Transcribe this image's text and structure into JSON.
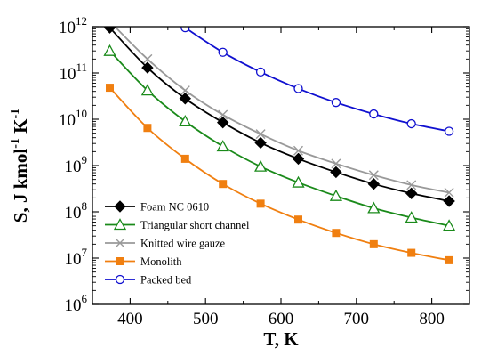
{
  "chart_data": {
    "type": "line",
    "xlabel": "T, K",
    "ylabel": {
      "main": "S, J kmol",
      "sup1": "-1",
      "mid": " K",
      "sup2": "-1"
    },
    "x_ticks": [
      400,
      500,
      600,
      700,
      800
    ],
    "y_ticks": [
      {
        "value": 1000000.0,
        "base": "10",
        "exp": "6"
      },
      {
        "value": 10000000.0,
        "base": "10",
        "exp": "7"
      },
      {
        "value": 100000000.0,
        "base": "10",
        "exp": "8"
      },
      {
        "value": 1000000000.0,
        "base": "10",
        "exp": "9"
      },
      {
        "value": 10000000000.0,
        "base": "10",
        "exp": "10"
      },
      {
        "value": 100000000000.0,
        "base": "10",
        "exp": "11"
      },
      {
        "value": 1000000000000.0,
        "base": "10",
        "exp": "12"
      }
    ],
    "xlim": [
      350,
      850
    ],
    "ylim": [
      1000000.0,
      1000000000000.0
    ],
    "y_scale": "log",
    "grid": false,
    "legend_position": "bottom-left",
    "series": [
      {
        "name": "Foam NC 0610",
        "color": "#000000",
        "marker": "filled-diamond",
        "x": [
          373,
          423,
          473,
          523,
          573,
          623,
          673,
          723,
          773,
          823
        ],
        "y": [
          950000000000.0,
          130000000000.0,
          28000000000.0,
          8500000000.0,
          3100000000.0,
          1400000000.0,
          720000000.0,
          400000000.0,
          250000000.0,
          170000000.0
        ]
      },
      {
        "name": "Triangular short channel",
        "color": "#1a8a1a",
        "marker": "open-triangle",
        "x": [
          373,
          423,
          473,
          523,
          573,
          623,
          673,
          723,
          773,
          823
        ],
        "y": [
          300000000000.0,
          42000000000.0,
          9000000000.0,
          2600000000.0,
          950000000.0,
          430000000.0,
          220000000.0,
          120000000.0,
          75000000.0,
          50000000.0
        ]
      },
      {
        "name": "Knitted wire gauze",
        "color": "#999999",
        "marker": "x",
        "x": [
          373,
          423,
          473,
          523,
          573,
          623,
          673,
          723,
          773,
          823
        ],
        "y": [
          1300000000000.0,
          200000000000.0,
          42000000000.0,
          12500000000.0,
          4800000000.0,
          2100000000.0,
          1100000000.0,
          620000000.0,
          380000000.0,
          260000000.0
        ]
      },
      {
        "name": "Monolith",
        "color": "#f07f10",
        "marker": "filled-square",
        "x": [
          373,
          423,
          473,
          523,
          573,
          623,
          673,
          723,
          773,
          823
        ],
        "y": [
          48000000000.0,
          6500000000.0,
          1400000000.0,
          400000000.0,
          150000000.0,
          68000000.0,
          35000000.0,
          20000000.0,
          13000000.0,
          9000000.0
        ]
      },
      {
        "name": "Packed bed",
        "color": "#1010d0",
        "marker": "open-circle",
        "x": [
          473,
          523,
          573,
          623,
          673,
          723,
          773,
          823
        ],
        "y": [
          950000000000.0,
          280000000000.0,
          105000000000.0,
          46000000000.0,
          23000000000.0,
          13000000000.0,
          8000000000.0,
          5500000000.0
        ]
      }
    ]
  }
}
